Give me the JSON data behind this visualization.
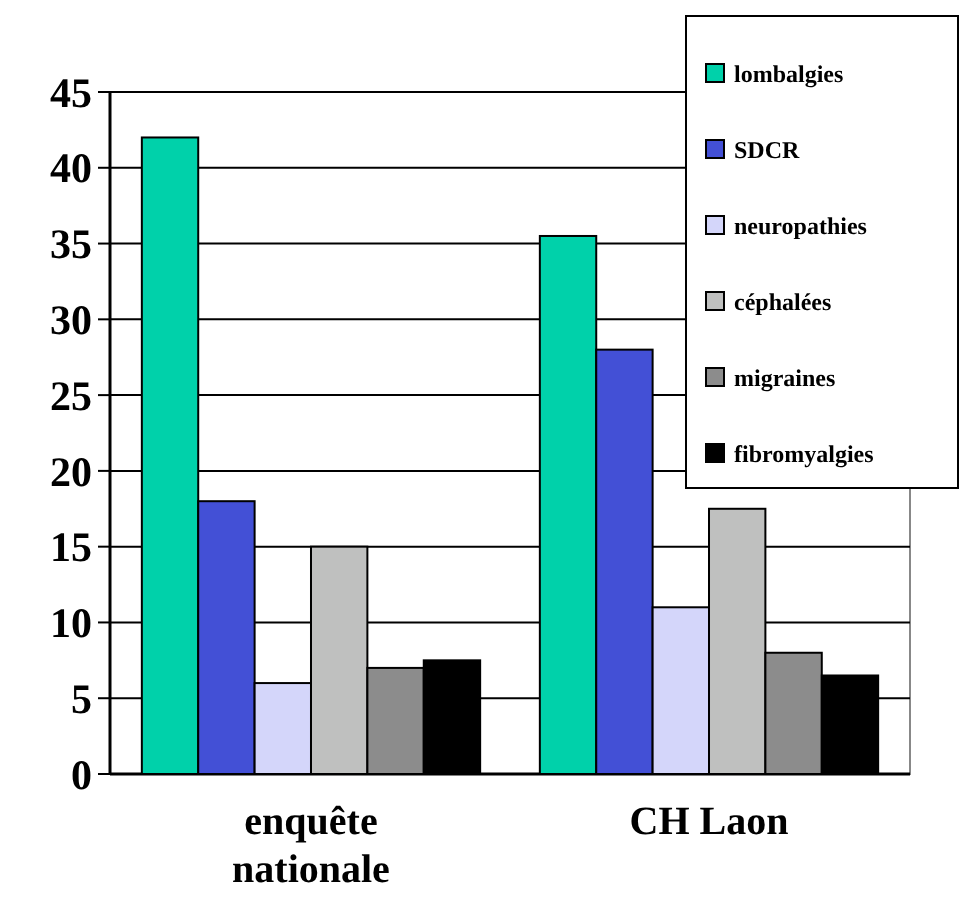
{
  "chart_data": {
    "type": "bar",
    "categories": [
      "enquête nationale",
      "CH Laon"
    ],
    "series": [
      {
        "name": "lombalgies",
        "color": "#00d1aa",
        "values": [
          42,
          35.5
        ]
      },
      {
        "name": "SDCR",
        "color": "#4350d6",
        "values": [
          18,
          28
        ]
      },
      {
        "name": "neuropathies",
        "color": "#d4d6fa",
        "values": [
          6,
          11
        ]
      },
      {
        "name": "céphalées",
        "color": "#bfc0bf",
        "values": [
          15,
          17.5
        ]
      },
      {
        "name": "migraines",
        "color": "#8c8c8c",
        "values": [
          7,
          8
        ]
      },
      {
        "name": "fibromyalgies",
        "color": "#000000",
        "values": [
          7.5,
          6.5
        ]
      }
    ],
    "ylim": [
      0,
      45
    ],
    "yticks": [
      0,
      5,
      10,
      15,
      20,
      25,
      30,
      35,
      40,
      45
    ],
    "grid": "y",
    "legend": "top right"
  }
}
